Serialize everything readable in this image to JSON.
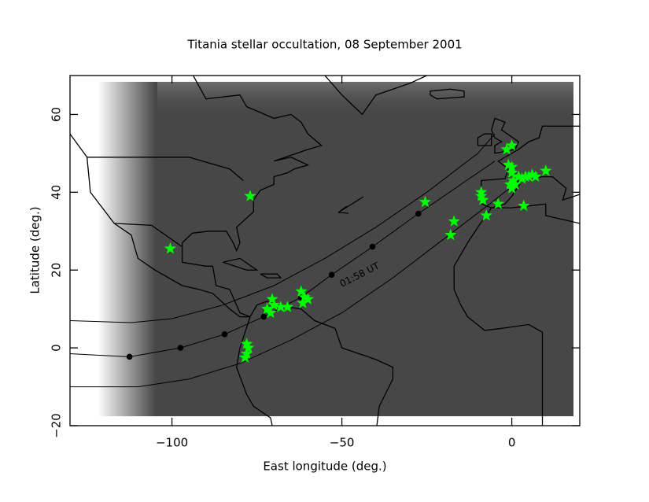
{
  "chart_data": {
    "type": "map",
    "title": "Titania stellar occultation, 08 September 2001",
    "xlabel": "East longitude (deg.)",
    "ylabel": "Latitude (deg.)",
    "xlim": [
      -130,
      20
    ],
    "ylim": [
      -20,
      70
    ],
    "xticks": [
      {
        "value": -100,
        "label": "−100"
      },
      {
        "value": -50,
        "label": "−50"
      },
      0
    ],
    "yticks": [
      {
        "value": -20,
        "label": "−20"
      },
      0,
      20,
      40,
      60
    ],
    "annotation": "01:58 UT",
    "lines": [
      {
        "x": [
          -130,
          -112,
          -100,
          -85,
          -70,
          -55,
          -40,
          -25,
          -10,
          -5
        ],
        "y": [
          7,
          6.5,
          7.5,
          11,
          16,
          23,
          31,
          40,
          50,
          55
        ]
      },
      {
        "x": [
          -130,
          -112.5,
          -97.5,
          -84.5,
          -73,
          -62,
          -53,
          -41,
          -27.5,
          -15,
          -5
        ],
        "y": [
          -1.5,
          -2.3,
          0,
          3.5,
          8,
          13,
          18.8,
          26,
          34.5,
          42,
          48
        ]
      },
      {
        "x": [
          -130,
          -110,
          -95,
          -80,
          -65,
          -50,
          -35,
          -20,
          -5,
          5
        ],
        "y": [
          -10,
          -10,
          -8,
          -4,
          2,
          9,
          18,
          28,
          38,
          45
        ]
      }
    ],
    "track_points": {
      "x": [
        -112.5,
        -97.5,
        -84.5,
        -73,
        -62,
        -53,
        -41,
        -27.5
      ],
      "y": [
        -2.3,
        0,
        3.5,
        8,
        13,
        18.8,
        26,
        34.5
      ]
    },
    "sites": {
      "color": "#00ff00",
      "x": [
        -77,
        -100.5,
        -72,
        -70.5,
        -70,
        -68,
        -66,
        -71,
        -62,
        -61,
        -61.5,
        -60,
        -78,
        -77.5,
        -78,
        -78.5,
        -25.5,
        -17,
        -18,
        -9,
        -8.5,
        -9,
        -7.5,
        -4,
        3.5,
        -1.5,
        0,
        -1,
        0,
        0.5,
        1,
        2,
        3,
        4,
        5,
        6,
        7,
        10,
        0,
        -0.5,
        0
      ],
      "y": [
        39,
        25.5,
        10,
        12.5,
        11,
        10.5,
        10.5,
        9,
        14.5,
        13,
        11.5,
        12.5,
        1,
        0,
        -1.5,
        -2.5,
        37.5,
        32.5,
        29,
        39,
        38,
        40,
        34,
        37,
        36.5,
        51,
        52,
        47,
        45,
        43,
        42,
        44,
        43.5,
        44,
        44,
        44.5,
        44,
        45.5,
        46.5,
        42,
        41
      ]
    }
  }
}
